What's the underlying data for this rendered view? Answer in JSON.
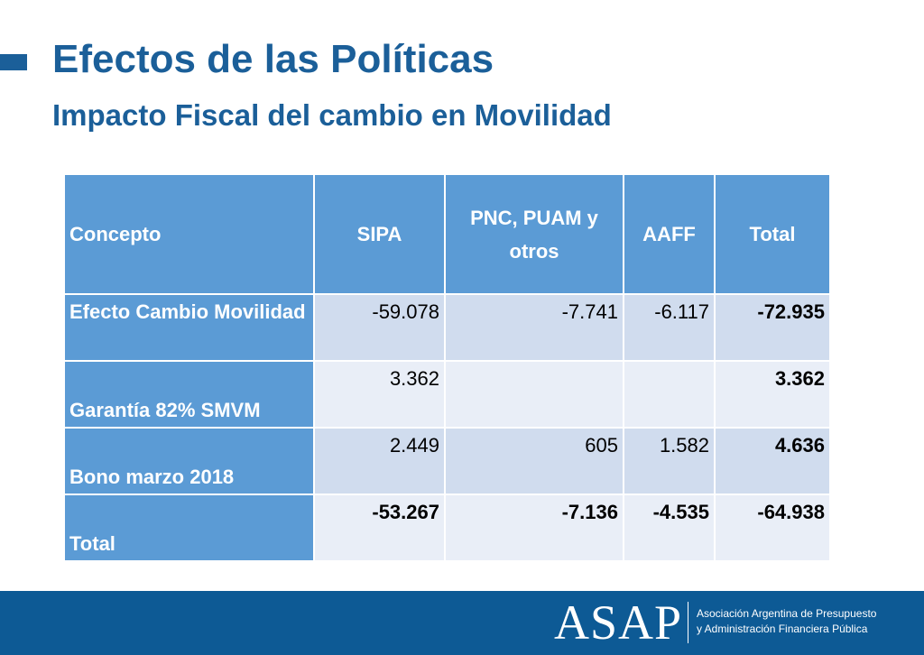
{
  "slide": {
    "title": "Efectos de las Políticas",
    "subtitle": "Impacto Fiscal del cambio en Movilidad"
  },
  "table": {
    "headers": [
      "Concepto",
      "SIPA",
      "PNC, PUAM y otros",
      "AAFF",
      "Total"
    ],
    "rows": [
      {
        "concepto": "Efecto Cambio Movilidad",
        "sipa": "-59.078",
        "pnc": "-7.741",
        "aaff": "-6.117",
        "total": "-72.935"
      },
      {
        "concepto": "Garantía 82% SMVM",
        "sipa": "3.362",
        "pnc": "",
        "aaff": "",
        "total": "3.362"
      },
      {
        "concepto": "Bono marzo 2018",
        "sipa": "2.449",
        "pnc": "605",
        "aaff": "1.582",
        "total": "4.636"
      },
      {
        "concepto": "Total",
        "sipa": "-53.267",
        "pnc": "-7.136",
        "aaff": "-4.535",
        "total": "-64.938"
      }
    ]
  },
  "footer": {
    "logo": "ASAP",
    "org_line1": "Asociación Argentina de Presupuesto",
    "org_line2": "y Administración Financiera Pública"
  },
  "colors": {
    "title": "#1b5f99",
    "header_bg": "#5b9bd5",
    "row_dark": "#d0dcee",
    "row_light": "#e9eef7",
    "footer_bg": "#0d5a95"
  }
}
